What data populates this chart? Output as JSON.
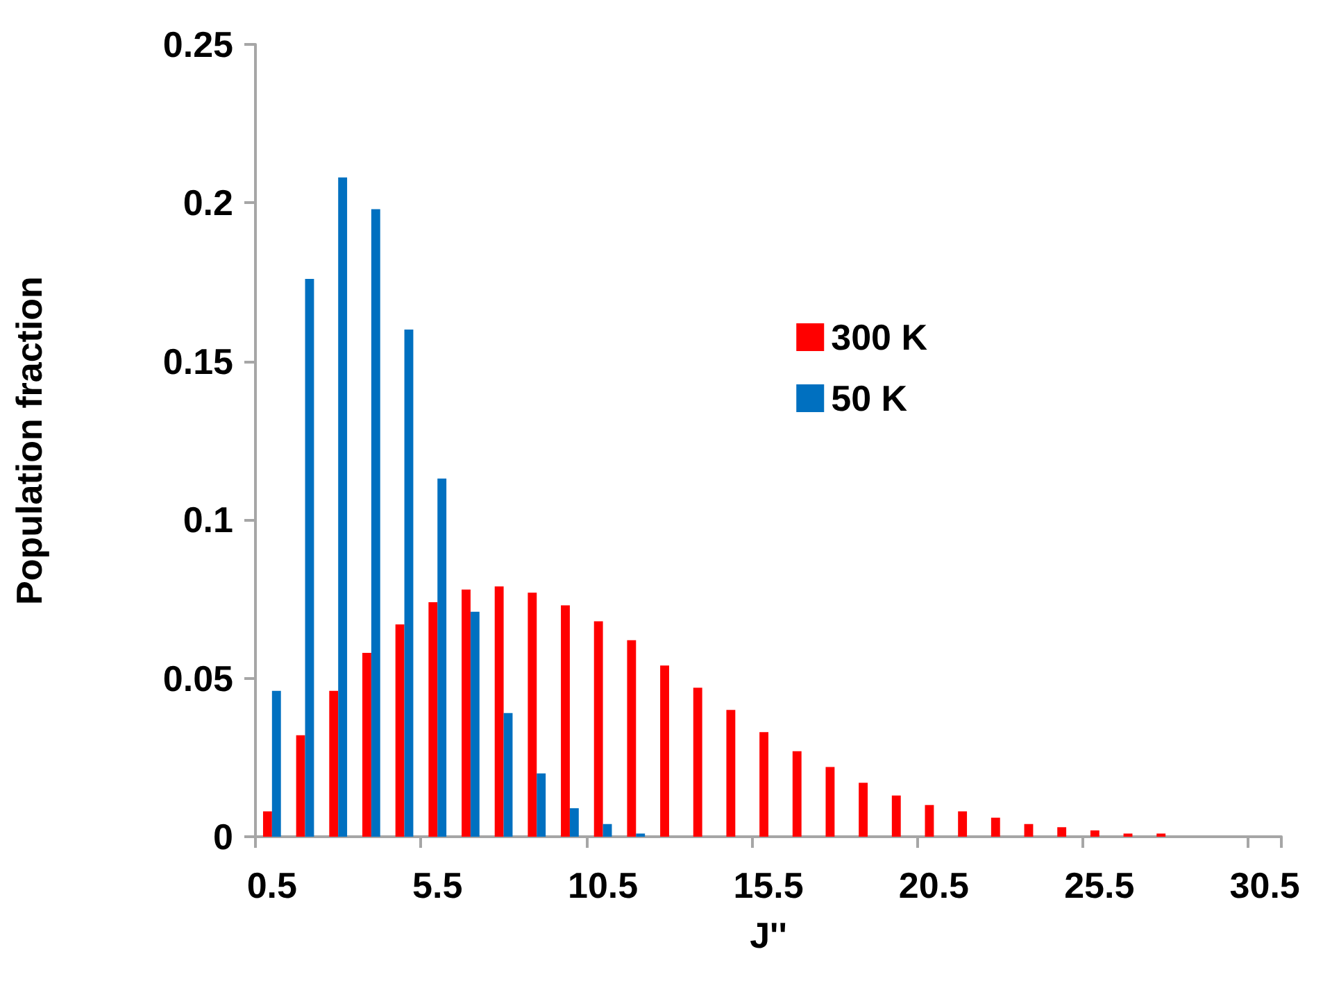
{
  "chart_data": {
    "type": "bar",
    "xlabel": "J''",
    "ylabel": "Population fraction",
    "categories": [
      "0.5",
      null,
      null,
      null,
      null,
      "5.5",
      null,
      null,
      null,
      null,
      "10.5",
      null,
      null,
      null,
      null,
      "15.5",
      null,
      null,
      null,
      null,
      "20.5",
      null,
      null,
      null,
      null,
      "25.5",
      null,
      null,
      null,
      null,
      "30.5"
    ],
    "series": [
      {
        "name": "300 K",
        "color": "#ff0000",
        "values": [
          0.008,
          0.032,
          0.046,
          0.058,
          0.067,
          0.074,
          0.078,
          0.079,
          0.077,
          0.073,
          0.068,
          0.062,
          0.054,
          0.047,
          0.04,
          0.033,
          0.027,
          0.022,
          0.017,
          0.013,
          0.01,
          0.008,
          0.006,
          0.004,
          0.003,
          0.002,
          0.001,
          0.001,
          0,
          0,
          0
        ]
      },
      {
        "name": "50 K",
        "color": "#0070c0",
        "values": [
          0.046,
          0.176,
          0.208,
          0.198,
          0.16,
          0.113,
          0.071,
          0.039,
          0.02,
          0.009,
          0.004,
          0.001,
          0,
          0,
          0,
          0,
          0,
          0,
          0,
          0,
          0,
          0,
          0,
          0,
          0,
          0,
          0,
          0,
          0,
          0,
          0
        ]
      }
    ],
    "ylim": [
      0,
      0.25
    ],
    "yticks": [
      0,
      0.05,
      0.1,
      0.15,
      0.2,
      0.25
    ],
    "grid": false,
    "legend": "top right"
  }
}
